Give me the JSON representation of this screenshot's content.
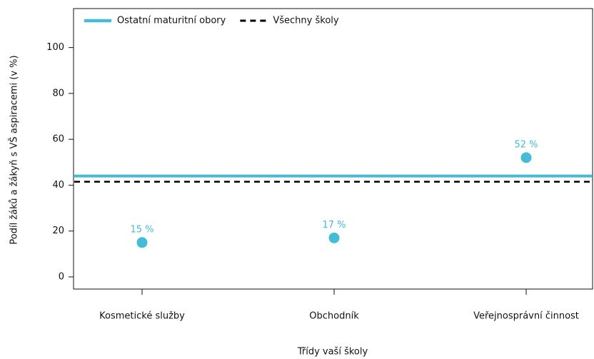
{
  "chart_data": {
    "type": "dot",
    "categories": [
      "Kosmetické služby",
      "Obchodník",
      "Veřejnosprávní činnost"
    ],
    "values": [
      15,
      17,
      52
    ],
    "value_labels": [
      "15 %",
      "17 %",
      "52 %"
    ],
    "color": "#45bcd6",
    "reference_lines": [
      {
        "name": "Ostatní maturitní obory",
        "value": 44,
        "color": "#45bcd6",
        "style": "solid"
      },
      {
        "name": "Všechny školy",
        "value": 41.5,
        "color": "#000000",
        "style": "dashed"
      }
    ],
    "xlabel": "Třídy vaší školy",
    "ylabel": "Podíl žáků a žákyň s VŠ aspiracemi (v %)",
    "ylim": [
      -5.3,
      117
    ],
    "yticks": [
      0,
      20,
      40,
      60,
      80,
      100
    ],
    "legend": "top-left"
  }
}
